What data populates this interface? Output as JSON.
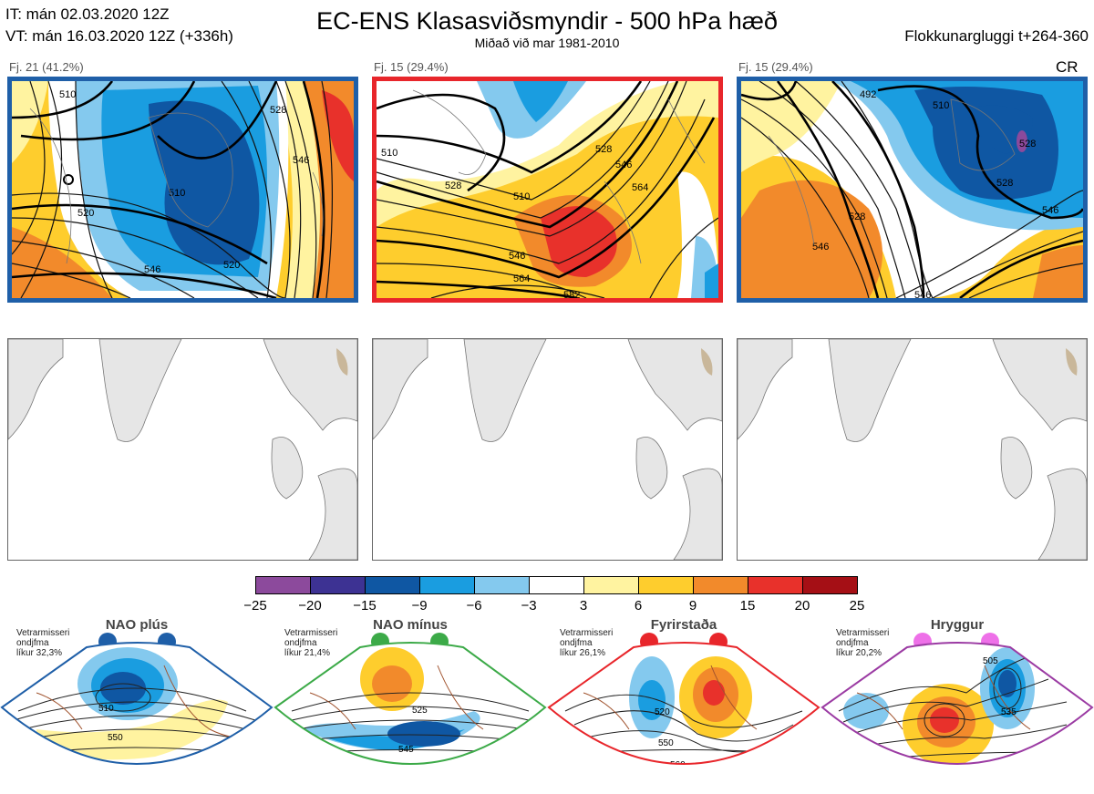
{
  "header": {
    "it_line": "IT: mán 02.03.2020 12Z",
    "vt_line": "VT: mán 16.03.2020 12Z  (+336h)",
    "title": "EC-ENS Klasasviðsmyndir - 500 hPa hæð",
    "subtitle": "Miðað við mar 1981-2010",
    "window": "Flokkunargluggi t+264-360",
    "cr": "CR"
  },
  "clusters": [
    {
      "label": "Fj. 21 (41.2%)",
      "border": "#1f5fa8",
      "contours": [
        "510",
        "520",
        "528",
        "546",
        "546",
        "554",
        "528"
      ]
    },
    {
      "label": "Fj. 15 (29.4%)",
      "border": "#e8262b",
      "contours": [
        "510",
        "510",
        "528",
        "528",
        "546",
        "546",
        "564",
        "564",
        "582",
        "546"
      ]
    },
    {
      "label": "Fj. 15 (29.4%)",
      "border": "#1f5fa8",
      "contours": [
        "492",
        "510",
        "528",
        "528",
        "546",
        "546",
        "528",
        "546",
        "546",
        "554"
      ]
    }
  ],
  "colorbar": {
    "ticks": [
      "−25",
      "−20",
      "−15",
      "−9",
      "−6",
      "−3",
      "3",
      "6",
      "9",
      "15",
      "20",
      "25"
    ],
    "colors": [
      "#8c4a9c",
      "#3d3293",
      "#0f57a3",
      "#1a9de0",
      "#84c9ee",
      "#ffffff",
      "#fff3a0",
      "#fecd2d",
      "#f28a2b",
      "#e8312b",
      "#a50f15"
    ]
  },
  "regimes": [
    {
      "name": "NAO plús",
      "note_l1": "Vetrarmisseri",
      "note_l2": "ondjfma",
      "note_l3": "líkur 32,3%",
      "color": "#1f5fa8",
      "contours": [
        "510",
        "550"
      ]
    },
    {
      "name": "NAO mínus",
      "note_l1": "Vetrarmisseri",
      "note_l2": "ondjfma",
      "note_l3": "líkur 21,4%",
      "color": "#3caa48",
      "contours": [
        "525",
        "545",
        "565"
      ]
    },
    {
      "name": "Fyrirstaða",
      "note_l1": "Vetrarmisseri",
      "note_l2": "ondjfma",
      "note_l3": "líkur 26,1%",
      "color": "#e8262b",
      "contours": [
        "520",
        "550",
        "560"
      ]
    },
    {
      "name": "Hryggur",
      "note_l1": "Vetrarmisseri",
      "note_l2": "ondjfma",
      "note_l3": "líkur 20,2%",
      "color": "#9b3ba3",
      "contours": [
        "505",
        "535",
        "560"
      ]
    }
  ],
  "regime_dot_colors": [
    "#1f5fa8",
    "#3caa48",
    "#e8262b",
    "#ee70e8"
  ]
}
